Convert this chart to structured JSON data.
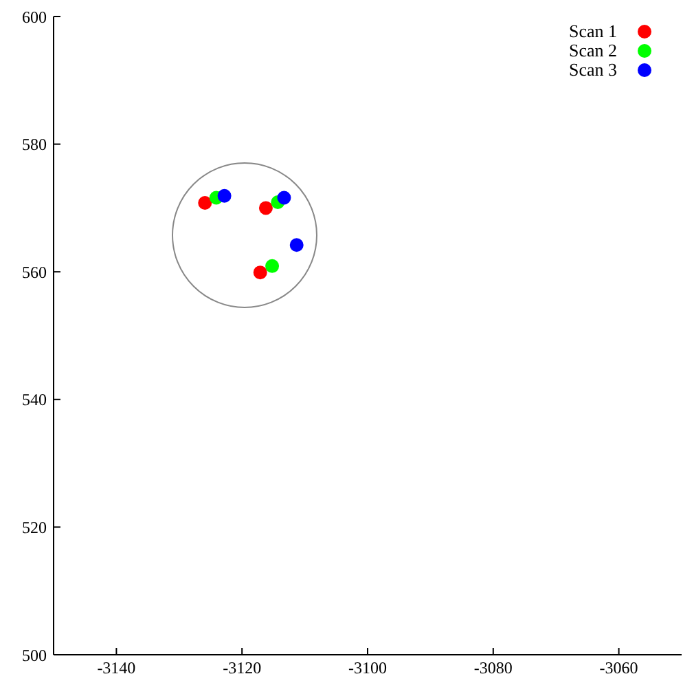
{
  "chart_data": {
    "type": "scatter",
    "xlim": [
      -3150,
      -3050
    ],
    "ylim": [
      500,
      600
    ],
    "xticks": [
      -3140,
      -3120,
      -3100,
      -3080,
      -3060
    ],
    "yticks": [
      500,
      520,
      540,
      560,
      580,
      600
    ],
    "grid": false,
    "legend": "top right",
    "marker": "circle",
    "series": [
      {
        "name": "Scan 1",
        "color": "#ff0000",
        "x": [
          -3125.9,
          -3116.2,
          -3117.1
        ],
        "values": [
          570.8,
          570.0,
          559.9
        ]
      },
      {
        "name": "Scan 2",
        "color": "#00ff00",
        "x": [
          -3124.1,
          -3114.3,
          -3115.2
        ],
        "values": [
          571.6,
          570.9,
          560.9
        ]
      },
      {
        "name": "Scan 3",
        "color": "#0000ff",
        "x": [
          -3122.8,
          -3113.3,
          -3111.3
        ],
        "values": [
          571.9,
          571.6,
          564.2
        ]
      }
    ]
  }
}
